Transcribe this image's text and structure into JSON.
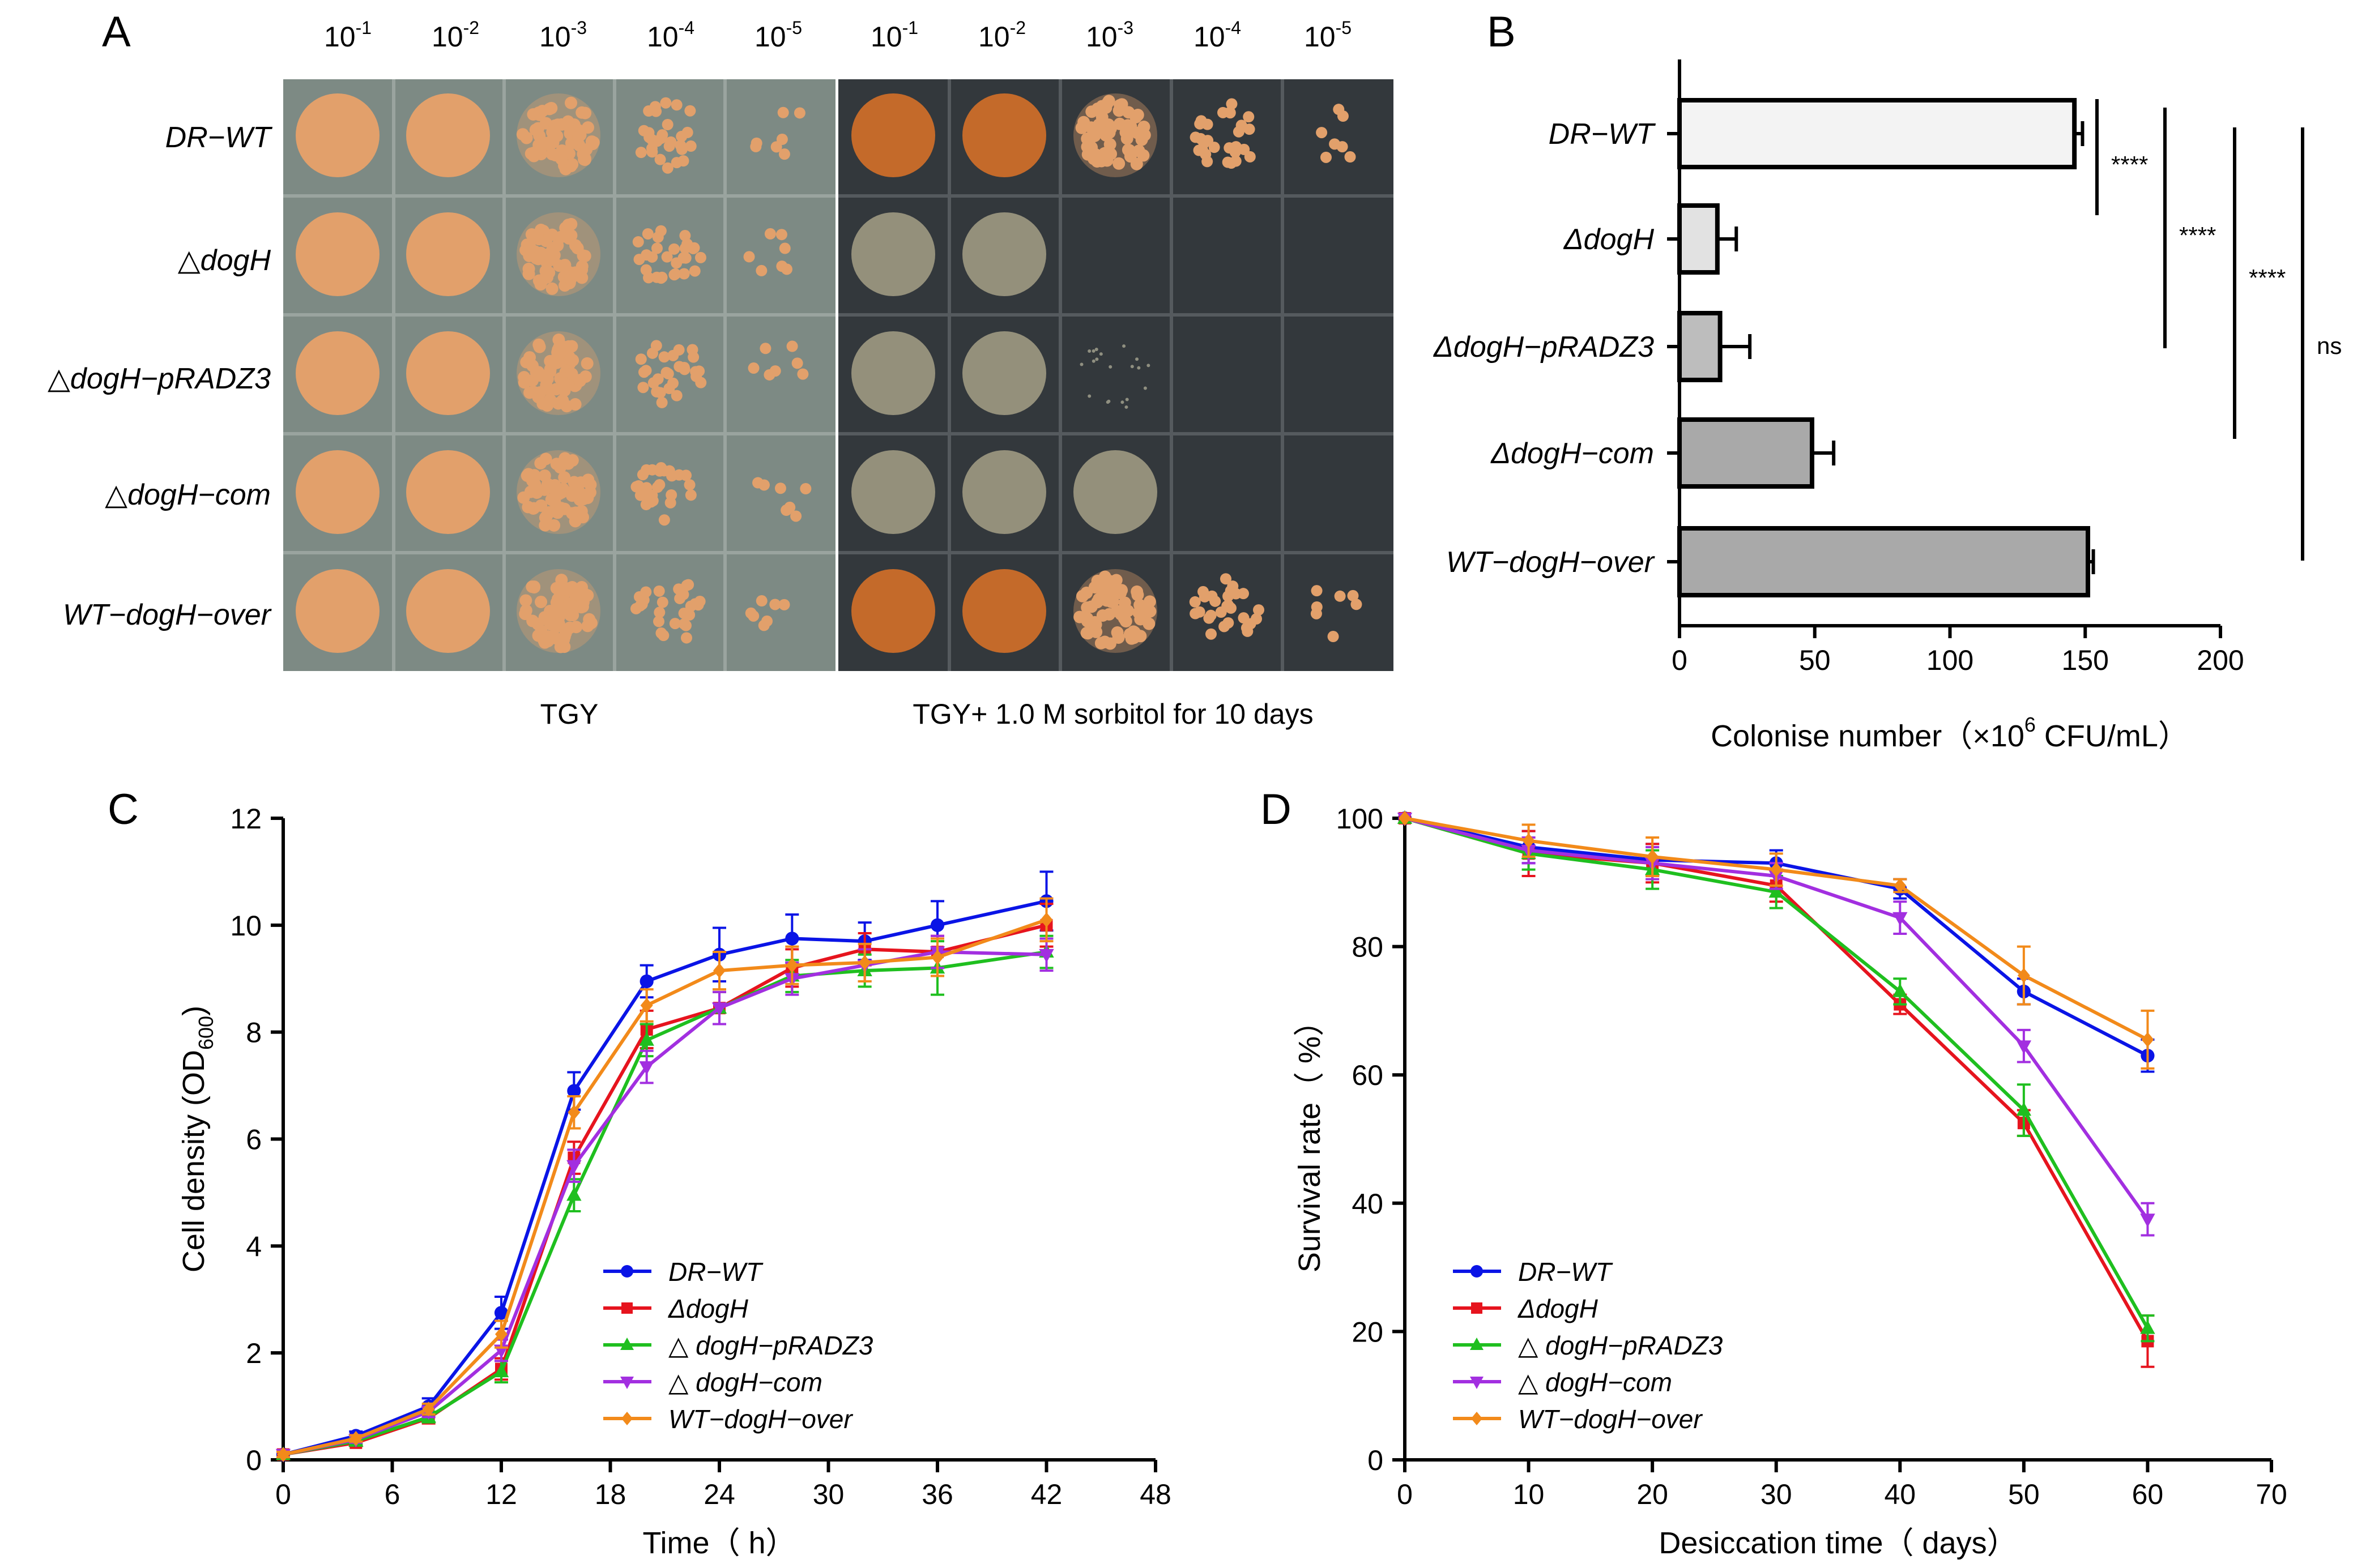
{
  "panels": {
    "a": {
      "letter": "A",
      "dilutions": [
        "10",
        "10",
        "10",
        "10",
        "10"
      ],
      "dilution_exponents": [
        "-1",
        "-2",
        "-3",
        "-4",
        "-5"
      ],
      "strains": [
        "DR−WT",
        "△dogH",
        "△dogH−pRADZ3",
        "△dogH−com",
        "WT−dogH−over"
      ],
      "plate_left_label": "TGY",
      "plate_right_label": "TGY+ 1.0 M  sorbitol for 10 days",
      "colors": {
        "left_plate_bg": "#7d8a84",
        "right_plate_bg": "#33383c",
        "colony_orange": "#e2a06b",
        "colony_red": "#c46a2a",
        "colony_grey": "#b6ae90"
      }
    },
    "b": {
      "letter": "B"
    },
    "c": {
      "letter": "C"
    },
    "d": {
      "letter": "D"
    }
  },
  "chart_data": [
    {
      "id": "B",
      "type": "bar",
      "orientation": "horizontal",
      "categories": [
        "DR−WT",
        "ΔdogH",
        "ΔdogH−pRADZ3",
        "ΔdogH−com",
        "WT−dogH−over"
      ],
      "values": [
        146,
        14,
        15,
        49,
        151
      ],
      "errors": [
        3,
        7,
        11,
        8,
        2
      ],
      "bar_colors": [
        "#f3f3f3",
        "#e2e2e2",
        "#bdbdbd",
        "#a9a9a9",
        "#a9a9a9"
      ],
      "xlabel": "Colonise number（×10",
      "xlabel_sup": "6",
      "xlabel_end": " CFU/mL）",
      "xlim": [
        0,
        200
      ],
      "xticks": [
        0,
        50,
        100,
        150,
        200
      ],
      "significance": [
        {
          "from": 0,
          "to": 1,
          "label": "****"
        },
        {
          "from": 0,
          "to": 2,
          "label": "****"
        },
        {
          "from": 0,
          "to": 3,
          "label": "****"
        },
        {
          "from": 0,
          "to": 4,
          "label": "ns"
        }
      ]
    },
    {
      "id": "C",
      "type": "line",
      "xlabel": "Time（ h）",
      "ylabel": "Cell density (OD",
      "ylabel_sub": "600",
      "ylabel_end": ")",
      "xlim": [
        0,
        48
      ],
      "ylim": [
        0,
        12
      ],
      "xticks": [
        0,
        6,
        12,
        18,
        24,
        30,
        36,
        42,
        48
      ],
      "yticks": [
        0,
        2,
        4,
        6,
        8,
        10,
        12
      ],
      "x": [
        0,
        4,
        8,
        12,
        16,
        20,
        24,
        28,
        32,
        36,
        42
      ],
      "series": [
        {
          "name": "DR−WT",
          "color": "#0a14e6",
          "marker": "circle",
          "values": [
            0.1,
            0.45,
            1.0,
            2.75,
            6.9,
            8.95,
            9.45,
            9.75,
            9.7,
            10.0,
            10.45
          ],
          "errors": [
            0.05,
            0.08,
            0.15,
            0.3,
            0.35,
            0.3,
            0.5,
            0.45,
            0.35,
            0.45,
            0.55
          ]
        },
        {
          "name": "ΔdogH",
          "color": "#e6141e",
          "marker": "square",
          "values": [
            0.1,
            0.32,
            0.78,
            1.7,
            5.65,
            8.05,
            8.45,
            9.2,
            9.55,
            9.5,
            10.0
          ],
          "errors": [
            0.05,
            0.06,
            0.1,
            0.2,
            0.3,
            0.35,
            0.3,
            0.35,
            0.3,
            0.3,
            0.4
          ]
        },
        {
          "name": "△ dogH−pRADZ3",
          "color": "#1fbf1f",
          "marker": "triangle-up",
          "values": [
            0.1,
            0.35,
            0.8,
            1.65,
            4.95,
            7.85,
            8.45,
            9.05,
            9.15,
            9.2,
            9.5
          ],
          "errors": [
            0.05,
            0.06,
            0.1,
            0.2,
            0.3,
            0.3,
            0.3,
            0.3,
            0.3,
            0.5,
            0.3
          ]
        },
        {
          "name": "△ dogH−com",
          "color": "#a22fe0",
          "marker": "triangle-down",
          "values": [
            0.1,
            0.38,
            0.9,
            2.05,
            5.5,
            7.35,
            8.45,
            9.0,
            9.25,
            9.5,
            9.45
          ],
          "errors": [
            0.05,
            0.06,
            0.1,
            0.2,
            0.3,
            0.3,
            0.3,
            0.3,
            0.3,
            0.3,
            0.3
          ]
        },
        {
          "name": "WT−dogH−over",
          "color": "#f28a1a",
          "marker": "diamond",
          "values": [
            0.1,
            0.4,
            0.95,
            2.35,
            6.5,
            8.5,
            9.15,
            9.25,
            9.3,
            9.4,
            10.1
          ],
          "errors": [
            0.05,
            0.06,
            0.1,
            0.25,
            0.3,
            0.3,
            0.35,
            0.35,
            0.35,
            0.35,
            0.4
          ]
        }
      ],
      "legend_position": "lower-middle"
    },
    {
      "id": "D",
      "type": "line",
      "xlabel": "Desiccation time（ days）",
      "ylabel": "Survival rate（ %）",
      "xlim": [
        0,
        70
      ],
      "ylim": [
        0,
        100
      ],
      "xticks": [
        0,
        10,
        20,
        30,
        40,
        50,
        60,
        70
      ],
      "yticks": [
        0,
        20,
        40,
        60,
        80,
        100
      ],
      "x": [
        0,
        10,
        20,
        30,
        40,
        50,
        60
      ],
      "series": [
        {
          "name": "DR−WT",
          "color": "#0a14e6",
          "marker": "circle",
          "values": [
            100,
            95.5,
            93.5,
            93.0,
            89.0,
            73.0,
            63.0
          ],
          "errors": [
            0,
            2.5,
            2.5,
            2.0,
            1.5,
            2.0,
            2.5
          ]
        },
        {
          "name": "ΔdogH",
          "color": "#e6141e",
          "marker": "square",
          "values": [
            100,
            94.5,
            93.0,
            89.5,
            71.0,
            52.5,
            18.5
          ],
          "errors": [
            0,
            3.5,
            3.0,
            2.5,
            1.5,
            2.0,
            4.0
          ]
        },
        {
          "name": "△ dogH−pRADZ3",
          "color": "#1fbf1f",
          "marker": "triangle-up",
          "values": [
            100,
            94.5,
            92.0,
            88.5,
            73.0,
            54.5,
            20.5
          ],
          "errors": [
            0,
            2.5,
            3.0,
            2.5,
            2.0,
            4.0,
            2.0
          ]
        },
        {
          "name": "△ dogH−com",
          "color": "#a22fe0",
          "marker": "triangle-down",
          "values": [
            100,
            95.0,
            93.0,
            91.0,
            84.5,
            64.5,
            37.5
          ],
          "errors": [
            0,
            2.0,
            2.5,
            2.0,
            2.5,
            2.5,
            2.5
          ]
        },
        {
          "name": "WT−dogH−over",
          "color": "#f28a1a",
          "marker": "diamond",
          "values": [
            100,
            96.5,
            94.0,
            92.0,
            89.5,
            75.5,
            65.5
          ],
          "errors": [
            0,
            2.5,
            3.0,
            2.5,
            1.0,
            4.5,
            4.5
          ]
        }
      ],
      "legend_position": "lower-left"
    }
  ]
}
